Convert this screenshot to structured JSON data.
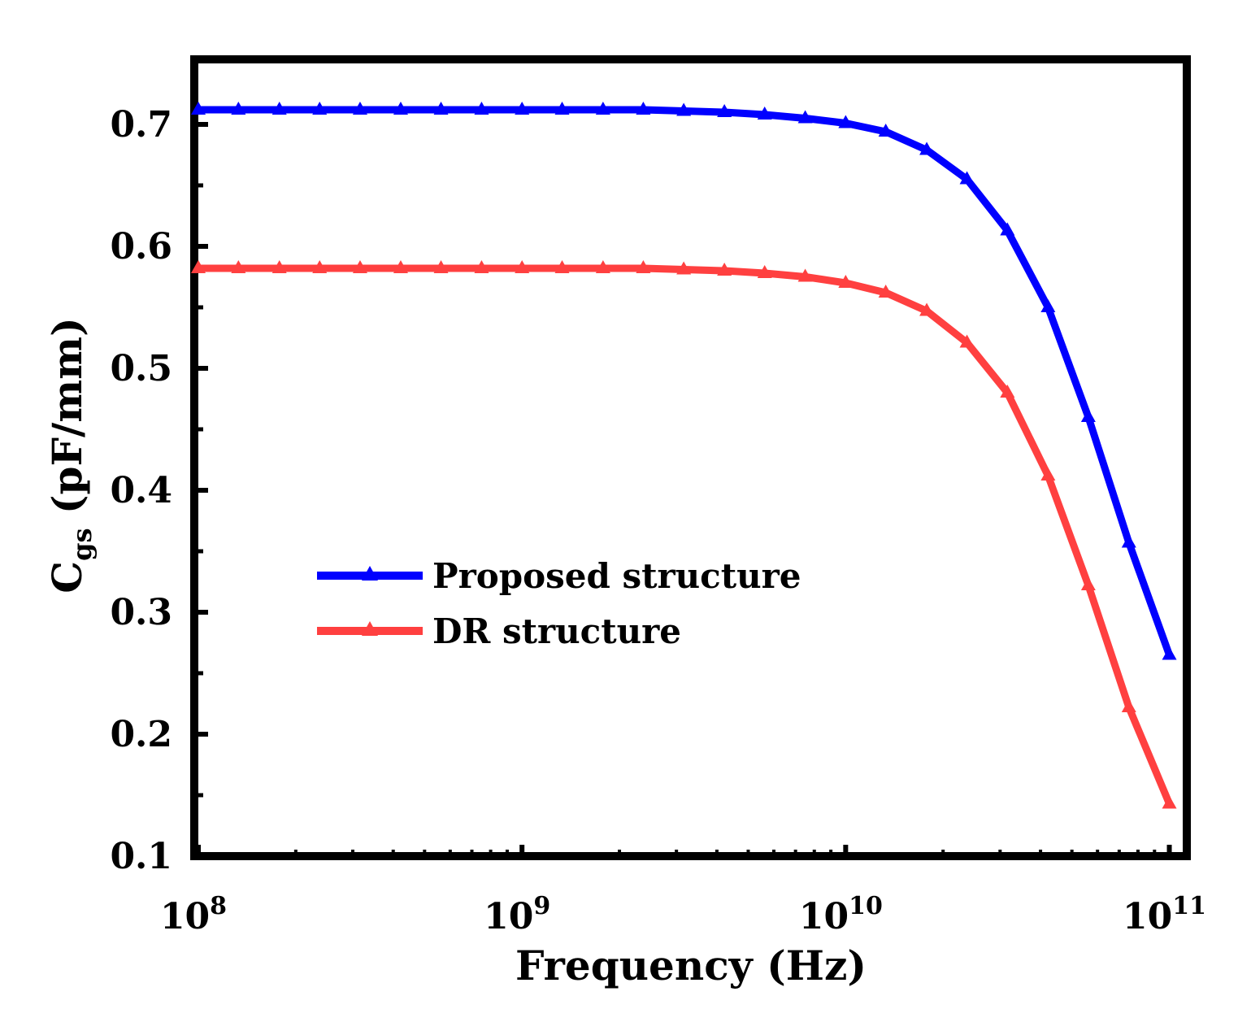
{
  "chart_data": {
    "type": "line",
    "xscale": "log",
    "xlim": [
      100000000.0,
      110000000000.0
    ],
    "ylim": [
      0.1,
      0.75
    ],
    "xlabel": "Frequency (Hz)",
    "ylabel": {
      "main": "C",
      "sub": "gs",
      "unit": " (pF/mm)"
    },
    "yticks": [
      "0.1",
      "0.2",
      "0.3",
      "0.4",
      "0.5",
      "0.6",
      "0.7"
    ],
    "xticks": [
      {
        "base": "10",
        "exp": "8",
        "value": 100000000.0
      },
      {
        "base": "10",
        "exp": "9",
        "value": 1000000000.0
      },
      {
        "base": "10",
        "exp": "10",
        "value": 10000000000.0
      },
      {
        "base": "10",
        "exp": "11",
        "value": 100000000000.0
      }
    ],
    "legend_position": "center-left",
    "series": [
      {
        "name": "Proposed structure",
        "color": "#0000ff",
        "marker": "triangle",
        "points": [
          [
            100000000.0,
            0.712
          ],
          [
            133000000.0,
            0.712
          ],
          [
            178000000.0,
            0.712
          ],
          [
            237000000.0,
            0.712
          ],
          [
            316000000.0,
            0.712
          ],
          [
            422000000.0,
            0.712
          ],
          [
            562000000.0,
            0.712
          ],
          [
            750000000.0,
            0.712
          ],
          [
            1000000000.0,
            0.712
          ],
          [
            1330000000.0,
            0.712
          ],
          [
            1780000000.0,
            0.712
          ],
          [
            2370000000.0,
            0.712
          ],
          [
            3160000000.0,
            0.711
          ],
          [
            4220000000.0,
            0.71
          ],
          [
            5620000000.0,
            0.708
          ],
          [
            7500000000.0,
            0.705
          ],
          [
            10000000000.0,
            0.701
          ],
          [
            13300000000.0,
            0.694
          ],
          [
            17800000000.0,
            0.679
          ],
          [
            23700000000.0,
            0.655
          ],
          [
            31600000000.0,
            0.613
          ],
          [
            42200000000.0,
            0.55
          ],
          [
            56200000000.0,
            0.46
          ],
          [
            75000000000.0,
            0.357
          ],
          [
            100000000000.0,
            0.265
          ]
        ]
      },
      {
        "name": "DR structure",
        "color": "#ff4040",
        "marker": "triangle",
        "points": [
          [
            100000000.0,
            0.582
          ],
          [
            133000000.0,
            0.582
          ],
          [
            178000000.0,
            0.582
          ],
          [
            237000000.0,
            0.582
          ],
          [
            316000000.0,
            0.582
          ],
          [
            422000000.0,
            0.582
          ],
          [
            562000000.0,
            0.582
          ],
          [
            750000000.0,
            0.582
          ],
          [
            1000000000.0,
            0.582
          ],
          [
            1330000000.0,
            0.582
          ],
          [
            1780000000.0,
            0.582
          ],
          [
            2370000000.0,
            0.582
          ],
          [
            3160000000.0,
            0.581
          ],
          [
            4220000000.0,
            0.58
          ],
          [
            5620000000.0,
            0.578
          ],
          [
            7500000000.0,
            0.575
          ],
          [
            10000000000.0,
            0.57
          ],
          [
            13300000000.0,
            0.562
          ],
          [
            17800000000.0,
            0.547
          ],
          [
            23700000000.0,
            0.521
          ],
          [
            31600000000.0,
            0.48
          ],
          [
            42200000000.0,
            0.412
          ],
          [
            56200000000.0,
            0.322
          ],
          [
            75000000000.0,
            0.222
          ],
          [
            100000000000.0,
            0.143
          ]
        ]
      }
    ]
  }
}
